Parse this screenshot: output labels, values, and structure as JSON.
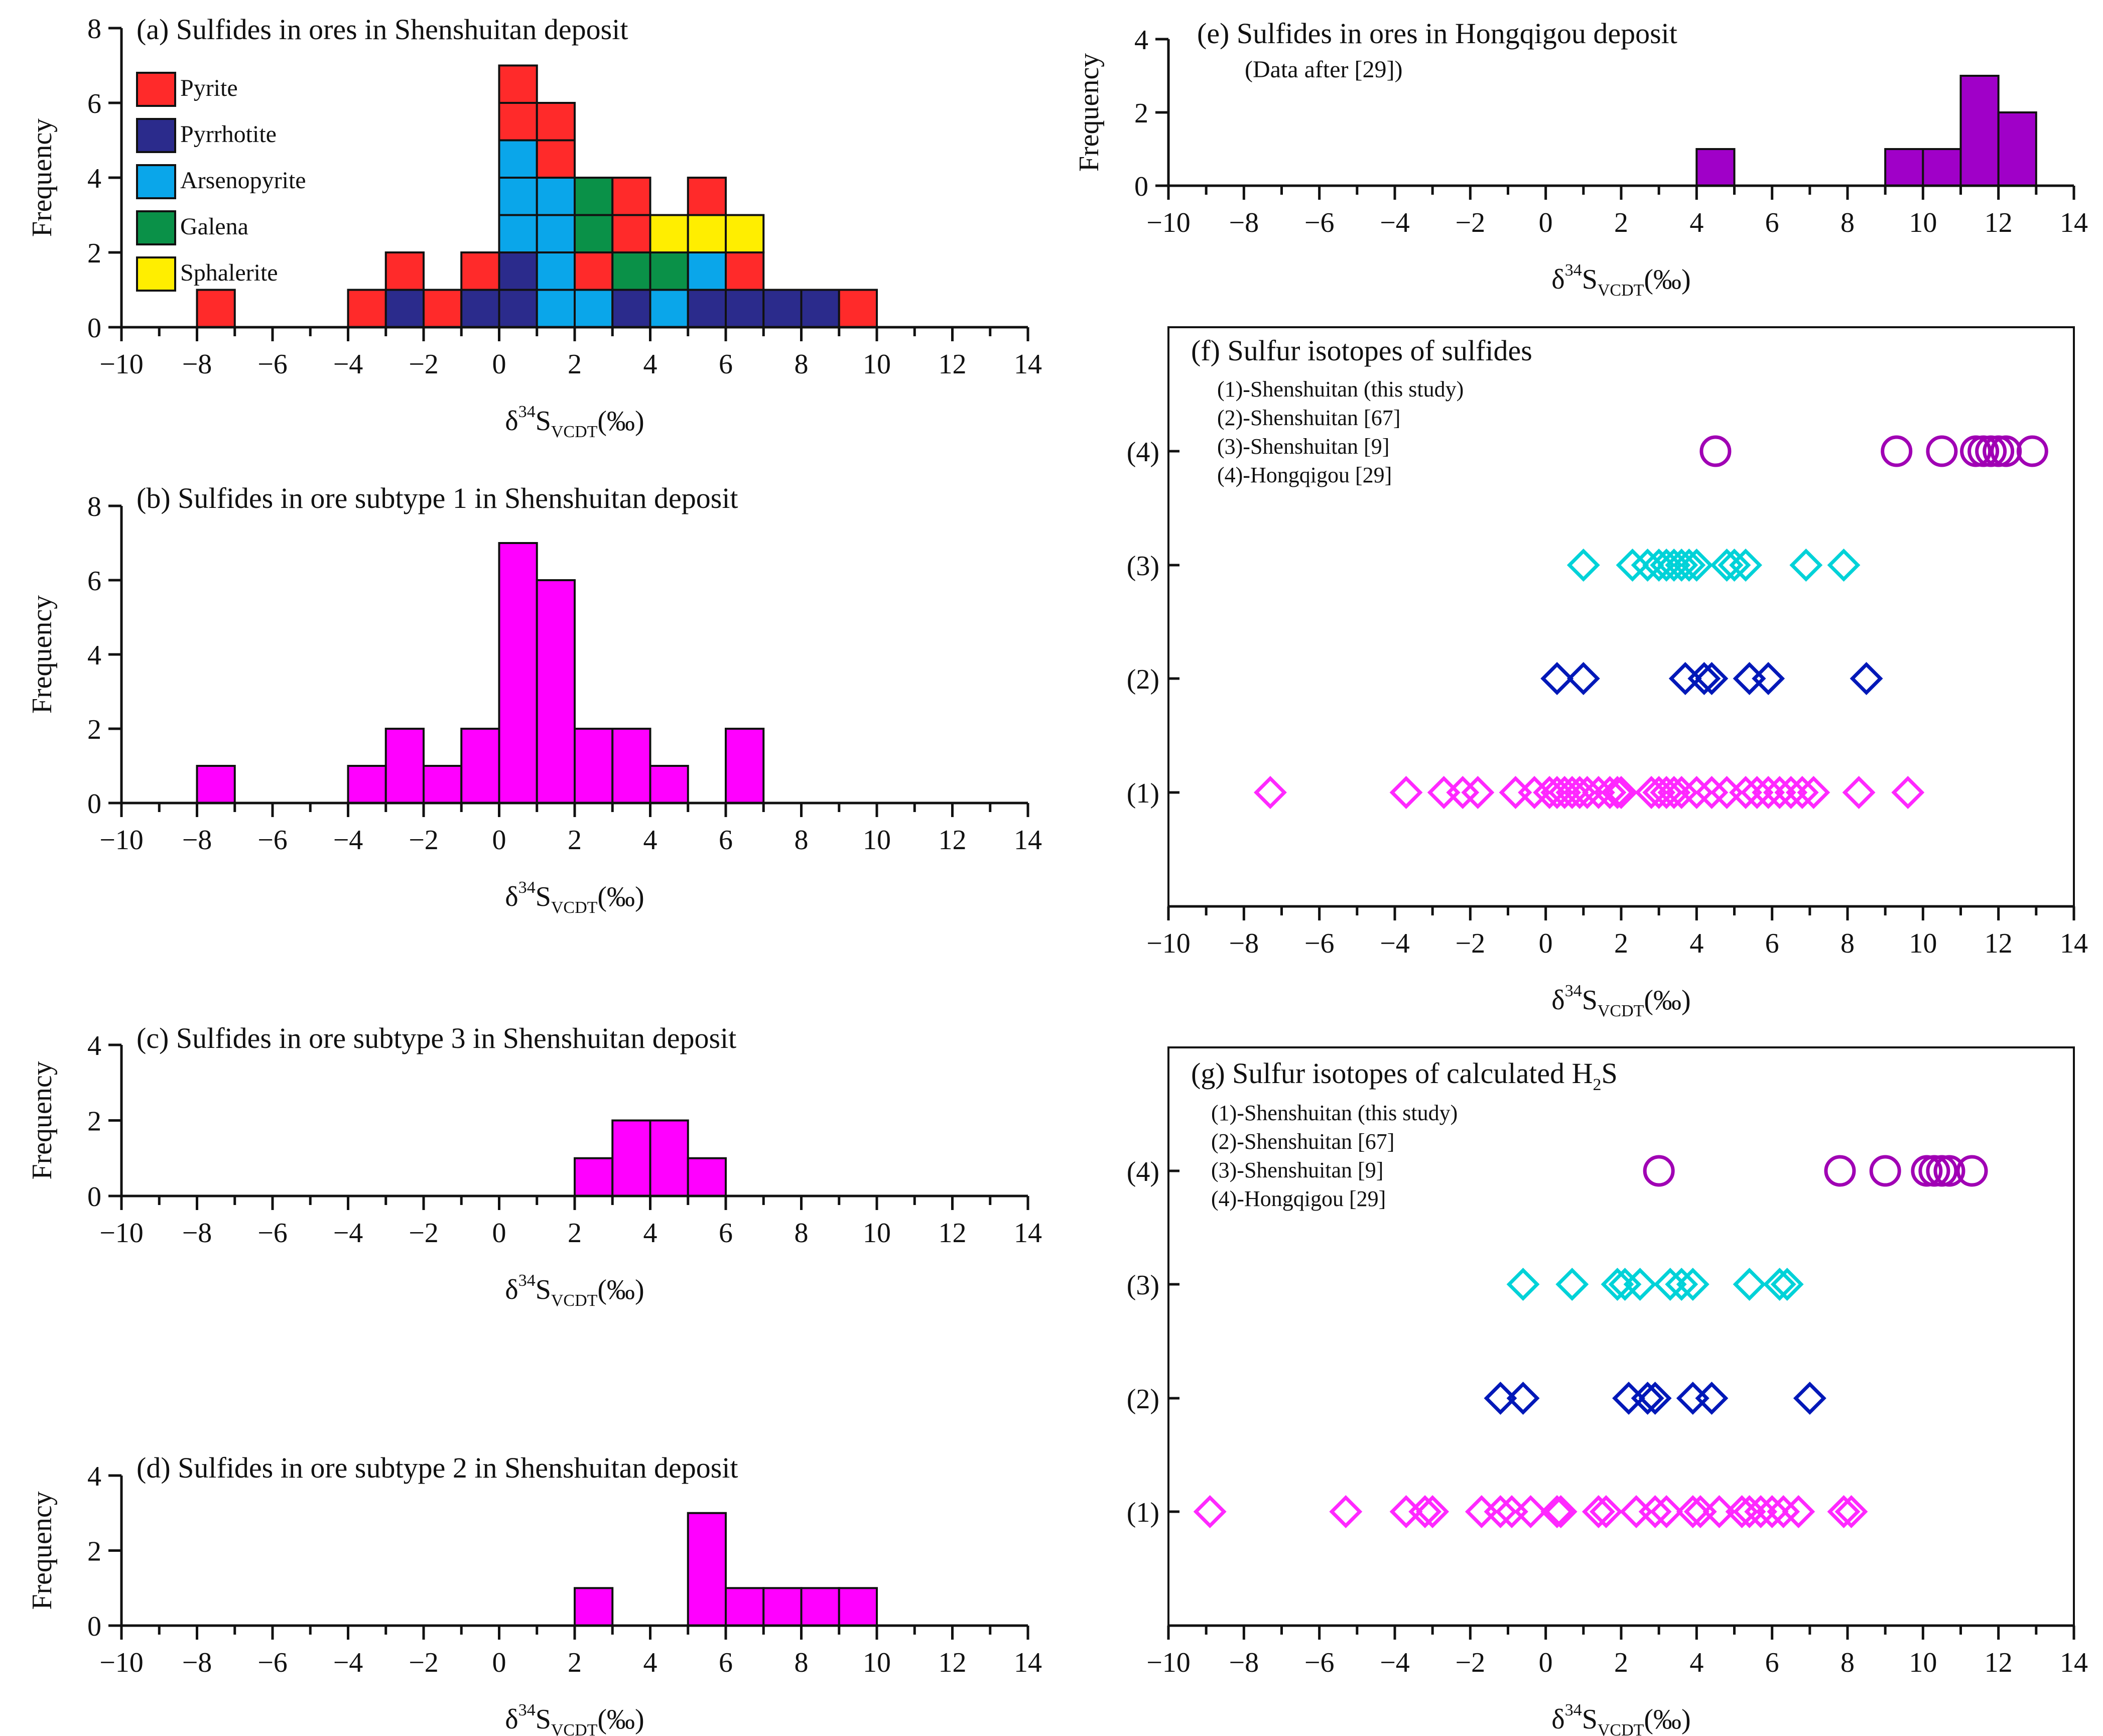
{
  "colors": {
    "pyrite": "#ff2a2a",
    "pyrrhotite": "#2b2b8c",
    "arsenopyrite": "#0aa6ea",
    "galena": "#0a9148",
    "sphalerite": "#ffee00",
    "magenta": "#ff00ff",
    "purple": "#a000c8",
    "cyan": "#00d2d8",
    "blue": "#0018b8",
    "pink": "#ff28ff",
    "violet": "#a000b4"
  },
  "common": {
    "xlabel_main": "δ",
    "xlabel_sup": "34",
    "xlabel_s": "S",
    "xlabel_sub": "VCDT",
    "xlabel_unit": "(‰)",
    "ylabel": "Frequency",
    "xticks": [
      -10,
      -8,
      -6,
      -4,
      -2,
      0,
      2,
      4,
      6,
      8,
      10,
      12,
      14
    ]
  },
  "chart_data": [
    {
      "id": "a",
      "type": "bar",
      "title": "(a) Sulfides in ores in Shenshuitan deposit",
      "stacked": true,
      "bin_width": 1,
      "xlim": [
        -10,
        14
      ],
      "ylim": [
        0,
        8
      ],
      "yticks": [
        0,
        2,
        4,
        6,
        8
      ],
      "legend": [
        "Pyrite",
        "Pyrrhotite",
        "Arsenopyrite",
        "Galena",
        "Sphalerite"
      ],
      "legend_position": "top-left",
      "columns": [
        {
          "bin": [
            -8,
            -7
          ],
          "stack": [
            "Pyrite"
          ]
        },
        {
          "bin": [
            -4,
            -3
          ],
          "stack": [
            "Pyrite"
          ]
        },
        {
          "bin": [
            -3,
            -2
          ],
          "stack": [
            "Pyrrhotite",
            "Pyrite"
          ]
        },
        {
          "bin": [
            -2,
            -1
          ],
          "stack": [
            "Pyrite"
          ]
        },
        {
          "bin": [
            -1,
            0
          ],
          "stack": [
            "Pyrrhotite",
            "Pyrite"
          ]
        },
        {
          "bin": [
            0,
            1
          ],
          "stack": [
            "Pyrrhotite",
            "Pyrrhotite",
            "Arsenopyrite",
            "Arsenopyrite",
            "Arsenopyrite",
            "Pyrite",
            "Pyrite"
          ]
        },
        {
          "bin": [
            1,
            2
          ],
          "stack": [
            "Arsenopyrite",
            "Arsenopyrite",
            "Arsenopyrite",
            "Arsenopyrite",
            "Pyrite",
            "Pyrite"
          ]
        },
        {
          "bin": [
            2,
            3
          ],
          "stack": [
            "Arsenopyrite",
            "Pyrite",
            "Galena",
            "Galena"
          ]
        },
        {
          "bin": [
            3,
            4
          ],
          "stack": [
            "Pyrrhotite",
            "Galena",
            "Pyrite",
            "Pyrite"
          ]
        },
        {
          "bin": [
            4,
            5
          ],
          "stack": [
            "Arsenopyrite",
            "Galena",
            "Sphalerite"
          ]
        },
        {
          "bin": [
            5,
            6
          ],
          "stack": [
            "Pyrrhotite",
            "Arsenopyrite",
            "Sphalerite",
            "Pyrite"
          ]
        },
        {
          "bin": [
            6,
            7
          ],
          "stack": [
            "Pyrrhotite",
            "Pyrite",
            "Sphalerite"
          ]
        },
        {
          "bin": [
            7,
            8
          ],
          "stack": [
            "Pyrrhotite"
          ]
        },
        {
          "bin": [
            8,
            9
          ],
          "stack": [
            "Pyrrhotite"
          ]
        },
        {
          "bin": [
            9,
            10
          ],
          "stack": [
            "Pyrite"
          ]
        }
      ]
    },
    {
      "id": "b",
      "type": "bar",
      "title": "(b) Sulfides in ore subtype 1 in Shenshuitan deposit",
      "xlim": [
        -10,
        14
      ],
      "ylim": [
        0,
        8
      ],
      "yticks": [
        0,
        2,
        4,
        6,
        8
      ],
      "bins": [
        [
          -8,
          -7
        ],
        [
          -4,
          -3
        ],
        [
          -3,
          -2
        ],
        [
          -2,
          -1
        ],
        [
          -1,
          0
        ],
        [
          0,
          1
        ],
        [
          1,
          2
        ],
        [
          2,
          3
        ],
        [
          3,
          4
        ],
        [
          4,
          5
        ],
        [
          6,
          7
        ]
      ],
      "values": [
        1,
        1,
        2,
        1,
        2,
        7,
        6,
        2,
        2,
        1,
        2
      ]
    },
    {
      "id": "c",
      "type": "bar",
      "title": "(c) Sulfides in ore subtype 3 in Shenshuitan deposit",
      "xlim": [
        -10,
        14
      ],
      "ylim": [
        0,
        4
      ],
      "yticks": [
        0,
        2,
        4
      ],
      "bins": [
        [
          2,
          3
        ],
        [
          3,
          4
        ],
        [
          4,
          5
        ],
        [
          5,
          6
        ]
      ],
      "values": [
        1,
        2,
        2,
        1
      ]
    },
    {
      "id": "d",
      "type": "bar",
      "title": "(d) Sulfides in ore subtype 2 in Shenshuitan deposit",
      "xlim": [
        -10,
        14
      ],
      "ylim": [
        0,
        4
      ],
      "yticks": [
        0,
        2,
        4
      ],
      "bins": [
        [
          2,
          3
        ],
        [
          5,
          6
        ],
        [
          6,
          7
        ],
        [
          7,
          8
        ],
        [
          8,
          9
        ],
        [
          9,
          10
        ]
      ],
      "values": [
        1,
        3,
        1,
        1,
        1,
        1
      ]
    },
    {
      "id": "e",
      "type": "bar",
      "title": "(e) Sulfides in ores in Hongqigou deposit",
      "subtitle": "(Data after [29])",
      "xlim": [
        -10,
        14
      ],
      "ylim": [
        0,
        4
      ],
      "yticks": [
        0,
        2,
        4
      ],
      "bins": [
        [
          4,
          5
        ],
        [
          9,
          10
        ],
        [
          10,
          11
        ],
        [
          11,
          12
        ],
        [
          12,
          13
        ]
      ],
      "values": [
        1,
        1,
        1,
        3,
        2
      ]
    },
    {
      "id": "f",
      "type": "scatter",
      "title": "(f) Sulfur isotopes of sulfides",
      "xlim": [
        -10,
        14
      ],
      "categories": [
        "(1)",
        "(2)",
        "(3)",
        "(4)"
      ],
      "legend": [
        "(1)-Shenshuitan (this study)",
        "(2)-Shenshuitan [67]",
        "(3)-Shenshuitan [9]",
        "(4)-Hongqigou [29]"
      ],
      "series": [
        {
          "row": 1,
          "marker": "diamond",
          "values": [
            -7.3,
            -3.7,
            -2.7,
            -2.2,
            -1.8,
            -0.8,
            -0.3,
            0.1,
            0.3,
            0.5,
            0.7,
            0.9,
            1.1,
            1.4,
            1.7,
            1.9,
            2.0,
            2.8,
            3.0,
            3.2,
            3.4,
            3.6,
            4.0,
            4.4,
            4.8,
            5.3,
            5.6,
            5.9,
            6.2,
            6.5,
            6.8,
            7.1,
            8.3,
            9.6
          ]
        },
        {
          "row": 2,
          "marker": "diamond",
          "values": [
            0.3,
            1.0,
            3.7,
            4.2,
            4.4,
            5.4,
            5.9,
            8.5
          ]
        },
        {
          "row": 3,
          "marker": "diamond",
          "values": [
            1.0,
            2.3,
            2.7,
            3.0,
            3.2,
            3.4,
            3.6,
            3.8,
            4.0,
            4.8,
            5.0,
            5.3,
            6.9,
            7.9
          ]
        },
        {
          "row": 4,
          "marker": "circle",
          "values": [
            4.5,
            9.3,
            10.5,
            11.4,
            11.6,
            11.8,
            12.0,
            12.2,
            12.9
          ]
        }
      ]
    },
    {
      "id": "g",
      "type": "scatter",
      "title_prefix": "(g) Sulfur isotopes of calculated H",
      "title_sub": "2",
      "title_suffix": "S",
      "xlim": [
        -10,
        14
      ],
      "categories": [
        "(1)",
        "(2)",
        "(3)",
        "(4)"
      ],
      "legend": [
        "(1)-Shenshuitan (this study)",
        "(2)-Shenshuitan [67]",
        "(3)-Shenshuitan [9]",
        "(4)-Hongqigou [29]"
      ],
      "series": [
        {
          "row": 1,
          "marker": "diamond",
          "values": [
            -8.9,
            -5.3,
            -3.7,
            -3.2,
            -3.0,
            -1.7,
            -1.2,
            -0.9,
            -0.4,
            0.3,
            0.4,
            1.4,
            1.6,
            2.4,
            2.9,
            3.2,
            3.9,
            4.1,
            4.6,
            5.2,
            5.4,
            5.7,
            6.0,
            6.3,
            6.7,
            7.9,
            8.1
          ]
        },
        {
          "row": 2,
          "marker": "diamond",
          "values": [
            -1.2,
            -0.6,
            2.2,
            2.7,
            2.9,
            3.9,
            4.4,
            7.0
          ]
        },
        {
          "row": 3,
          "marker": "diamond",
          "values": [
            -0.6,
            0.7,
            1.9,
            2.1,
            2.5,
            3.3,
            3.6,
            3.9,
            5.4,
            6.2,
            6.4
          ]
        },
        {
          "row": 4,
          "marker": "circle",
          "values": [
            3.0,
            7.8,
            9.0,
            10.1,
            10.3,
            10.5,
            10.7,
            11.3
          ]
        }
      ]
    }
  ]
}
